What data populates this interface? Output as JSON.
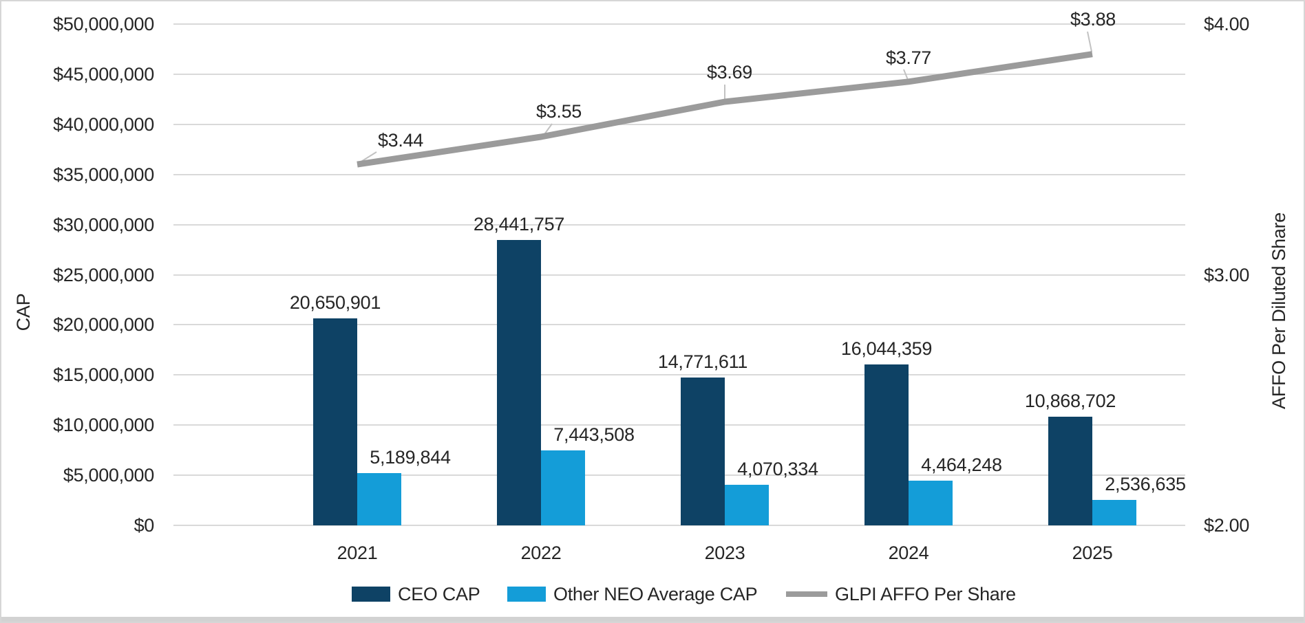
{
  "chart_data": {
    "type": "combo",
    "categories": [
      "2021",
      "2022",
      "2023",
      "2024",
      "2025"
    ],
    "series": [
      {
        "name": "CEO CAP",
        "type": "bar",
        "axis": "left",
        "color": "#0e4265",
        "values": [
          20650901,
          28441757,
          14771611,
          16044359,
          10868702
        ],
        "labels": [
          "20,650,901",
          "28,441,757",
          "14,771,611",
          "16,044,359",
          "10,868,702"
        ]
      },
      {
        "name": "Other NEO Average CAP",
        "type": "bar",
        "axis": "left",
        "color": "#149dd8",
        "values": [
          5189844,
          7443508,
          4070334,
          4464248,
          2536635
        ],
        "labels": [
          "5,189,844",
          "7,443,508",
          "4,070,334",
          "4,464,248",
          "2,536,635"
        ]
      },
      {
        "name": "GLPI AFFO Per Share",
        "type": "line",
        "axis": "right",
        "color": "#9b9b9b",
        "values": [
          3.44,
          3.55,
          3.69,
          3.77,
          3.88
        ],
        "labels": [
          "$3.44",
          "$3.55",
          "$3.69",
          "$3.77",
          "$3.88"
        ]
      }
    ],
    "left_axis": {
      "title": "CAP",
      "min": 0,
      "max": 50000000,
      "step": 5000000,
      "tick_labels_top_down": [
        "$50,000,000",
        "$45,000,000",
        "$40,000,000",
        "$35,000,000",
        "$30,000,000",
        "$25,000,000",
        "$20,000,000",
        "$15,000,000",
        "$10,000,000",
        "$5,000,000",
        "$0"
      ]
    },
    "right_axis": {
      "title": "AFFO Per Diluted Share",
      "min": 2.0,
      "max": 4.0,
      "ticks": [
        {
          "label": "$4.00",
          "value": 4.0
        },
        {
          "label": "$3.00",
          "value": 3.0
        },
        {
          "label": "$2.00",
          "value": 2.0
        }
      ]
    },
    "legend": [
      "CEO CAP",
      "Other NEO Average CAP",
      "GLPI AFFO Per Share"
    ],
    "grid": true,
    "gridline_color": "#d9d9d9",
    "label_color": "#262626"
  }
}
